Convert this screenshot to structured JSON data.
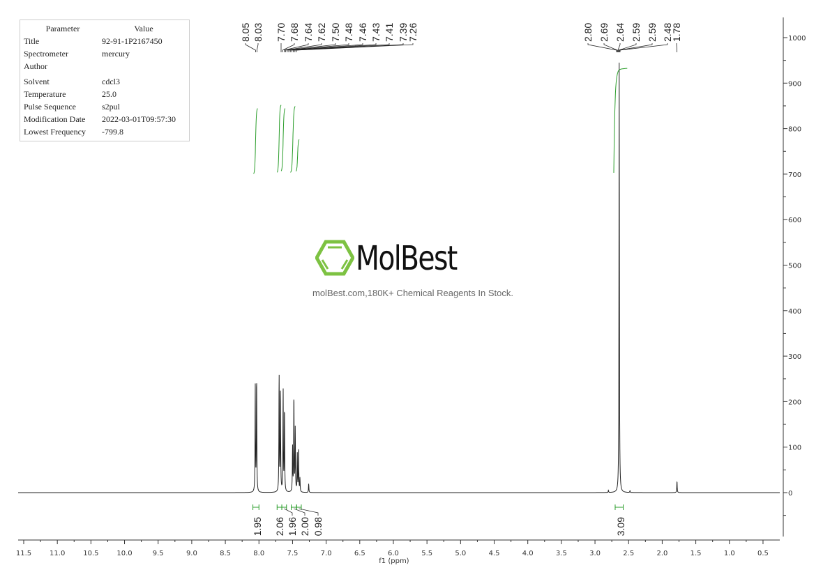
{
  "parameters": {
    "header": {
      "key": "Parameter",
      "value": "Value"
    },
    "rows": [
      {
        "key": "Title",
        "value": "92-91-1P2167450"
      },
      {
        "key": "Spectrometer",
        "value": "mercury"
      },
      {
        "key": "Author",
        "value": ""
      },
      {
        "key": "Solvent",
        "value": "cdcl3"
      },
      {
        "key": "Temperature",
        "value": "25.0"
      },
      {
        "key": "Pulse Sequence",
        "value": "s2pul"
      },
      {
        "key": "Modification Date",
        "value": "2022-03-01T09:57:30"
      },
      {
        "key": "Lowest Frequency",
        "value": "-799.8"
      }
    ]
  },
  "watermark": {
    "brand": "MolBest",
    "tagline": "molBest.com,180K+ Chemical Reagents In Stock.",
    "color": "#7dc242"
  },
  "chart_data": {
    "type": "line",
    "title": "",
    "xlabel": "f1 (ppm)",
    "ylabel": "",
    "xlim": [
      11.6,
      0.3
    ],
    "ylim": [
      -100,
      1050
    ],
    "x_reversed": true,
    "x_ticks": [
      "11.5",
      "11.0",
      "10.5",
      "10.0",
      "9.5",
      "9.0",
      "8.5",
      "8.0",
      "7.5",
      "7.0",
      "6.5",
      "6.0",
      "5.5",
      "5.0",
      "4.5",
      "4.0",
      "3.5",
      "3.0",
      "2.5",
      "2.0",
      "1.5",
      "1.0",
      "0.5"
    ],
    "y_ticks": [
      "1000",
      "900",
      "800",
      "700",
      "600",
      "500",
      "400",
      "300",
      "200",
      "100",
      "0"
    ],
    "y_axis_side": "right",
    "grid": false,
    "line_color": "#222222",
    "integral_color": "#2a9d2a",
    "peaks": [
      {
        "ppm": 8.055,
        "intensity": 235
      },
      {
        "ppm": 8.035,
        "intensity": 260
      },
      {
        "ppm": 7.7,
        "intensity": 265
      },
      {
        "ppm": 7.68,
        "intensity": 230
      },
      {
        "ppm": 7.64,
        "intensity": 225
      },
      {
        "ppm": 7.62,
        "intensity": 190
      },
      {
        "ppm": 7.5,
        "intensity": 100
      },
      {
        "ppm": 7.48,
        "intensity": 220
      },
      {
        "ppm": 7.46,
        "intensity": 140
      },
      {
        "ppm": 7.43,
        "intensity": 85
      },
      {
        "ppm": 7.41,
        "intensity": 100
      },
      {
        "ppm": 7.39,
        "intensity": 30
      },
      {
        "ppm": 7.26,
        "intensity": 20
      },
      {
        "ppm": 2.8,
        "intensity": 5
      },
      {
        "ppm": 2.64,
        "intensity": 945
      },
      {
        "ppm": 2.48,
        "intensity": 4
      },
      {
        "ppm": 1.78,
        "intensity": 26
      }
    ],
    "peak_labels_group1": [
      "8.05",
      "8.03"
    ],
    "peak_labels_group2": [
      "7.70",
      "7.68",
      "7.64",
      "7.62",
      "7.50",
      "7.48",
      "7.46",
      "7.43",
      "7.41",
      "7.39",
      "7.26"
    ],
    "peak_labels_group3": [
      "2.80",
      "2.69",
      "2.64",
      "2.59",
      "2.59",
      "2.48"
    ],
    "peak_labels_group4": [
      "1.78"
    ],
    "integrals": [
      {
        "from": 8.09,
        "to": 8.0,
        "value": "1.95"
      },
      {
        "from": 7.73,
        "to": 7.66,
        "value": "2.06"
      },
      {
        "from": 7.66,
        "to": 7.59,
        "value": "1.96"
      },
      {
        "from": 7.52,
        "to": 7.44,
        "value": "2.00"
      },
      {
        "from": 7.44,
        "to": 7.37,
        "value": "0.98"
      },
      {
        "from": 2.7,
        "to": 2.58,
        "value": "3.09"
      }
    ]
  }
}
